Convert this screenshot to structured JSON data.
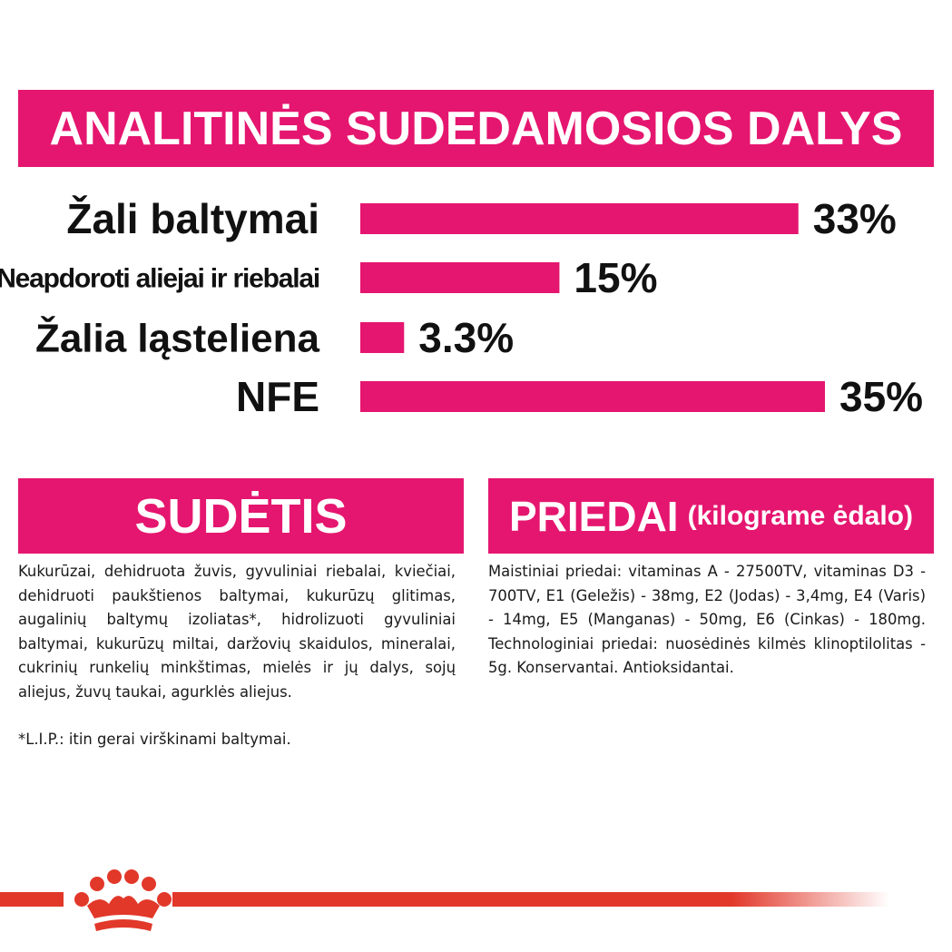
{
  "accent_color": "#e5166f",
  "footer_color": "#e2382a",
  "title": "ANALITINĖS SUDEDAMOSIOS DALYS",
  "chart_data": {
    "type": "bar",
    "orientation": "horizontal",
    "categories": [
      "Žali baltymai",
      "Neapdoroti aliejai ir riebalai",
      "Žalia ląsteliena",
      "NFE"
    ],
    "values": [
      33,
      15,
      3.3,
      35
    ],
    "value_labels": [
      "33%",
      "15%",
      "3.3%",
      "35%"
    ],
    "unit": "%",
    "xlim": [
      0,
      35
    ],
    "grid": false,
    "bar_color": "#e5166f"
  },
  "sudetis": {
    "title": "SUDĖTIS",
    "text": "Kukurūzai, dehidruota žuvis, gyvuliniai riebalai, kviečiai, dehidruoti paukštienos baltymai, kukurūzų glitimas, augalinių baltymų izoliatas*, hidrolizuoti gyvuliniai baltymai, kukurūzų miltai, daržovių skaidulos, mineralai, cukrinių runkelių minkštimas, mielės ir jų dalys, sojų aliejus, žuvų taukai, agurklės aliejus.",
    "note": "*L.I.P.: itin gerai virškinami baltymai."
  },
  "priedai": {
    "title": "PRIEDAI",
    "subtitle": "(kilograme ėdalo)",
    "text": "Maistiniai priedai: vitaminas A - 27500TV, vitaminas D3 - 700TV, E1 (Geležis) - 38mg, E2 (Jodas) - 3,4mg, E4 (Varis) - 14mg, E5 (Manganas) - 50mg, E6 (Cinkas) - 180mg. Technologiniai priedai: nuosėdinės kilmės klinoptilolitas - 5g. Konservantai. Antioksidantai."
  }
}
